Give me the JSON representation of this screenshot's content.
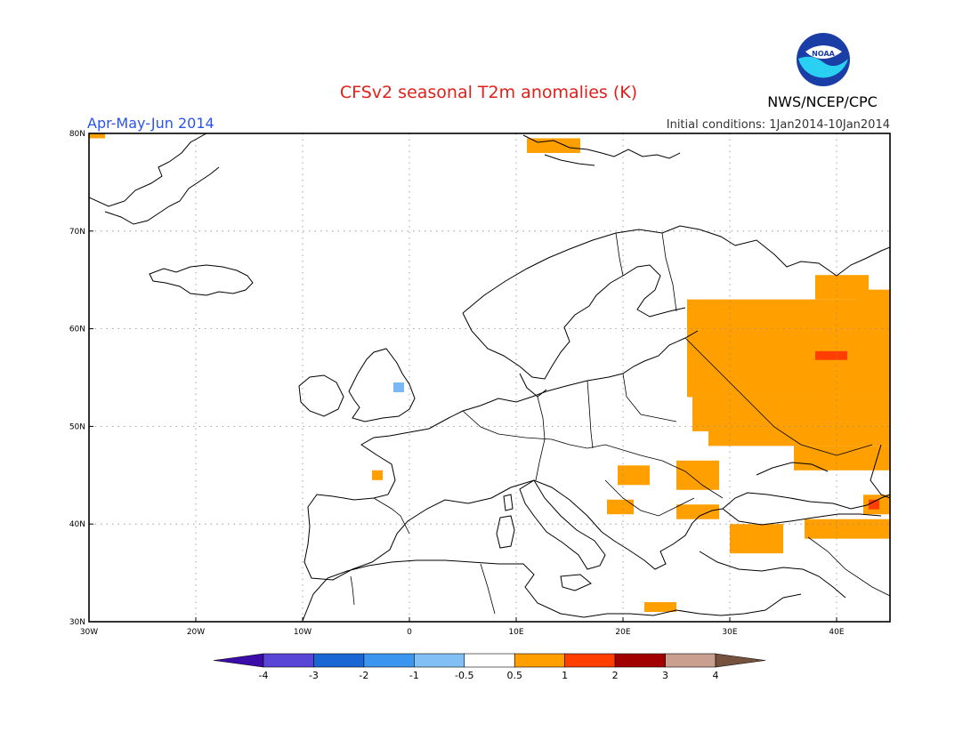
{
  "title": "CFSv2 seasonal T2m anomalies (K)",
  "agency": "NWS/NCEP/CPC",
  "logo_text": "NOAA",
  "period": "Apr-May-Jun 2014",
  "initial_conditions": "Initial conditions: 1Jan2014-10Jan2014",
  "colors": {
    "title": "#e0201a",
    "period": "#2a55e8",
    "anom_05_1": "#ff9f00",
    "anom_1_2": "#ff3e00",
    "anom_neg": "#7ab7f5",
    "coast": "#000000",
    "grid": "#8c8c8c"
  },
  "map": {
    "lon_range": [
      -30,
      45
    ],
    "lat_range": [
      30,
      80
    ],
    "lon_ticks": [
      {
        "lon": -30,
        "label": "30W"
      },
      {
        "lon": -20,
        "label": "20W"
      },
      {
        "lon": -10,
        "label": "10W"
      },
      {
        "lon": 0,
        "label": "0"
      },
      {
        "lon": 10,
        "label": "10E"
      },
      {
        "lon": 20,
        "label": "20E"
      },
      {
        "lon": 30,
        "label": "30E"
      },
      {
        "lon": 40,
        "label": "40E"
      }
    ],
    "lat_ticks": [
      {
        "lat": 30,
        "label": "30N"
      },
      {
        "lat": 40,
        "label": "40N"
      },
      {
        "lat": 50,
        "label": "50N"
      },
      {
        "lat": 60,
        "label": "60N"
      },
      {
        "lat": 70,
        "label": "70N"
      },
      {
        "lat": 80,
        "label": "80N"
      }
    ]
  },
  "colorbar": {
    "bins": [
      {
        "color": "#3c0ca8"
      },
      {
        "color": "#5a46d6"
      },
      {
        "color": "#1a66d4"
      },
      {
        "color": "#3c96f0"
      },
      {
        "color": "#82bff5"
      },
      {
        "color": "#ffffff"
      },
      {
        "color": "#ff9f00"
      },
      {
        "color": "#ff3e00"
      },
      {
        "color": "#a20000"
      },
      {
        "color": "#c9a090"
      },
      {
        "color": "#76513e"
      }
    ],
    "labels": [
      "-4",
      "-3",
      "-2",
      "-1",
      "-0.5",
      "0.5",
      "1",
      "2",
      "3",
      "4"
    ]
  },
  "chart_data": {
    "type": "heatmap",
    "title": "CFSv2 seasonal T2m anomalies (K)",
    "subtitle": "Apr-May-Jun 2014",
    "lon_range": [
      -30,
      45
    ],
    "lat_range": [
      30,
      80
    ],
    "grid": true,
    "regions": [
      {
        "bin": "0.5 to 1",
        "lon": [
          26,
          45
        ],
        "lat": [
          53,
          63
        ]
      },
      {
        "bin": "0.5 to 1",
        "lon": [
          28,
          45
        ],
        "lat": [
          48,
          53
        ]
      },
      {
        "bin": "0.5 to 1",
        "lon": [
          36,
          45
        ],
        "lat": [
          45.5,
          48
        ]
      },
      {
        "bin": "0.5 to 1",
        "lon": [
          26.5,
          31
        ],
        "lat": [
          49.5,
          53
        ]
      },
      {
        "bin": "0.5 to 1",
        "lon": [
          38,
          43
        ],
        "lat": [
          63,
          65.5
        ]
      },
      {
        "bin": "0.5 to 1",
        "lon": [
          42,
          45
        ],
        "lat": [
          62.5,
          64
        ]
      },
      {
        "bin": "0.5 to 1",
        "lon": [
          11,
          16
        ],
        "lat": [
          78,
          79.5
        ]
      },
      {
        "bin": "0.5 to 1",
        "lon": [
          25,
          29
        ],
        "lat": [
          43.5,
          46.5
        ]
      },
      {
        "bin": "0.5 to 1",
        "lon": [
          19.5,
          22.5
        ],
        "lat": [
          44,
          46
        ]
      },
      {
        "bin": "0.5 to 1",
        "lon": [
          18.5,
          21
        ],
        "lat": [
          41,
          42.5
        ]
      },
      {
        "bin": "0.5 to 1",
        "lon": [
          25,
          29
        ],
        "lat": [
          40.5,
          42
        ]
      },
      {
        "bin": "0.5 to 1",
        "lon": [
          30,
          35
        ],
        "lat": [
          37,
          40
        ]
      },
      {
        "bin": "0.5 to 1",
        "lon": [
          37,
          45
        ],
        "lat": [
          38.5,
          40.5
        ]
      },
      {
        "bin": "0.5 to 1",
        "lon": [
          42.5,
          45
        ],
        "lat": [
          41,
          43
        ]
      },
      {
        "bin": "0.5 to 1",
        "lon": [
          22,
          25
        ],
        "lat": [
          31,
          32
        ]
      },
      {
        "bin": "0.5 to 1",
        "lon": [
          -3.5,
          -2.5
        ],
        "lat": [
          44.5,
          45.5
        ]
      },
      {
        "bin": "0.5 to 1",
        "lon": [
          -30,
          -28.5
        ],
        "lat": [
          79.5,
          80
        ]
      },
      {
        "bin": "1 to 2",
        "lon": [
          38,
          41
        ],
        "lat": [
          56.8,
          57.7
        ]
      },
      {
        "bin": "1 to 2",
        "lon": [
          43,
          44
        ],
        "lat": [
          41.5,
          42.5
        ]
      },
      {
        "bin": "-1 to -0.5",
        "lon": [
          -1.5,
          -0.5
        ],
        "lat": [
          53.5,
          54.5
        ]
      }
    ]
  }
}
